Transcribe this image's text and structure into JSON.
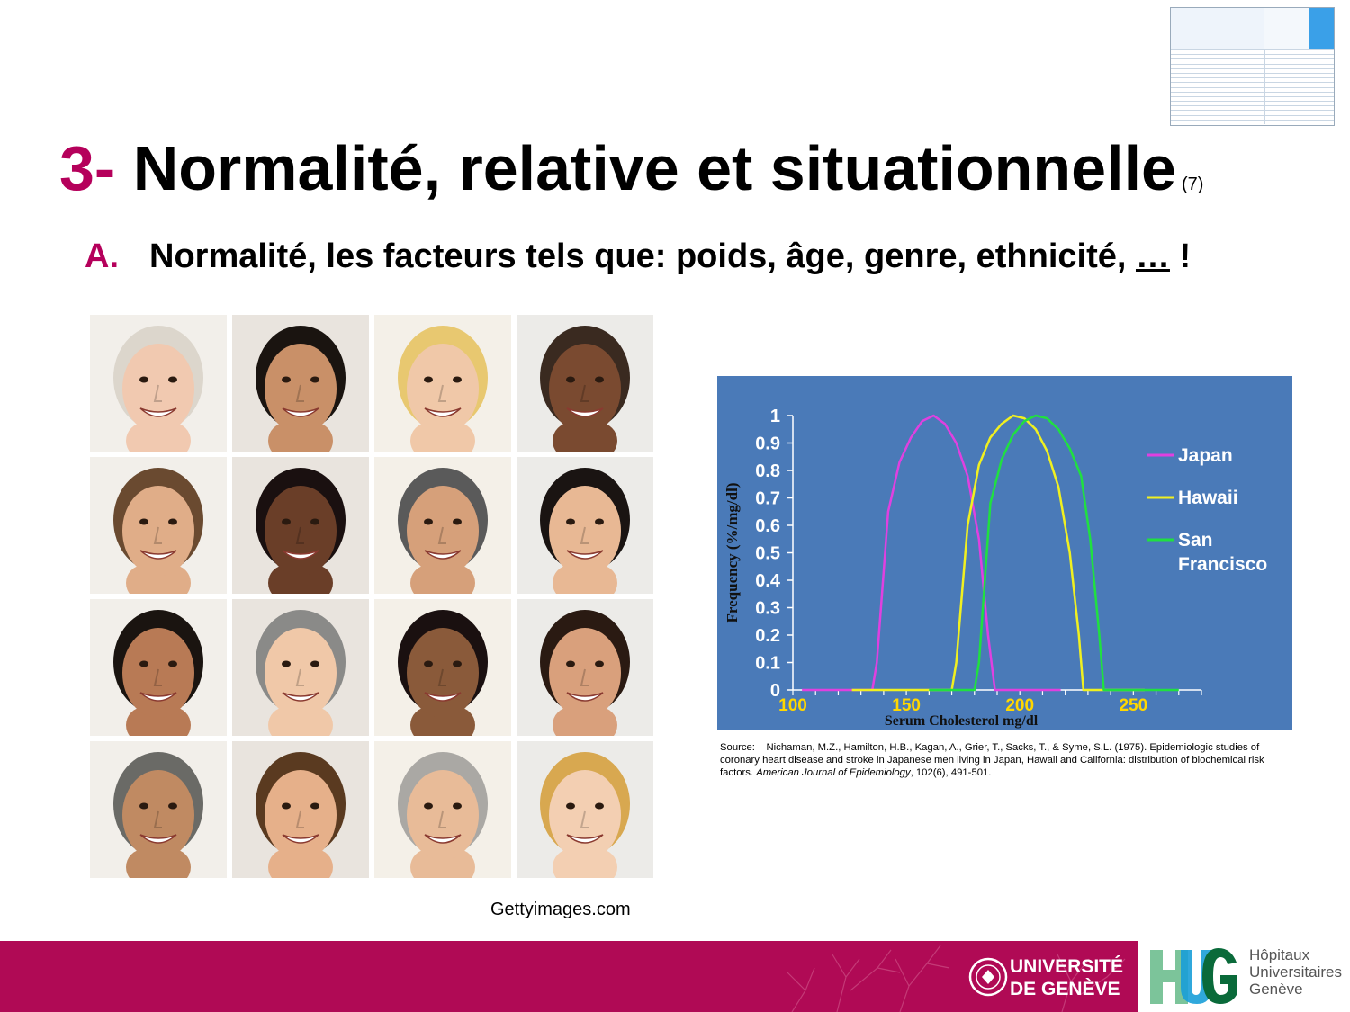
{
  "slide": {
    "title_number": "3-",
    "title_text": "Normalité, relative et situationnelle",
    "title_ref": "(7)",
    "subtitle_letter": "A.",
    "subtitle_text": "Normalité, les facteurs tels que: poids, âge, genre, ethnicité,",
    "subtitle_ellipsis": "…",
    "subtitle_end": "!",
    "photo_credit": "Gettyimages.com"
  },
  "source": {
    "prefix": "Source:",
    "authors": "Nichaman, M.Z., Hamilton, H.B., Kagan, A., Grier, T., Sacks, T., & Syme, S.L. (1975). Epidemiologic studies of coronary heart disease and stroke in Japanese men living in Japan, Hawaii and California: distribution of biochemical risk factors.",
    "journal": "American Journal of Epidemiology",
    "volume": ", 102(6), 491-501."
  },
  "chart_data": {
    "type": "line",
    "xlabel": "Serum Cholesterol mg/dl",
    "ylabel": "Frequency (%/mg/dl)",
    "xlim": [
      100,
      280
    ],
    "ylim": [
      0,
      1
    ],
    "x_ticks": [
      100,
      150,
      200,
      250
    ],
    "y_ticks": [
      "0",
      "0.1",
      "0.2",
      "0.3",
      "0.4",
      "0.5",
      "0.6",
      "0.7",
      "0.8",
      "0.9",
      "1"
    ],
    "background_color": "#4a7ab8",
    "legend_position": "right",
    "series": [
      {
        "name": "Japan",
        "color": "#e040e0",
        "points": [
          [
            104,
            0
          ],
          [
            135,
            0
          ],
          [
            137,
            0.1
          ],
          [
            142,
            0.65
          ],
          [
            147,
            0.83
          ],
          [
            152,
            0.92
          ],
          [
            157,
            0.98
          ],
          [
            162,
            1.0
          ],
          [
            167,
            0.97
          ],
          [
            172,
            0.9
          ],
          [
            177,
            0.78
          ],
          [
            182,
            0.55
          ],
          [
            186,
            0.2
          ],
          [
            189,
            0
          ],
          [
            205,
            0
          ],
          [
            218,
            0
          ]
        ]
      },
      {
        "name": "Hawaii",
        "color": "#f0f020",
        "points": [
          [
            126,
            0
          ],
          [
            150,
            0
          ],
          [
            170,
            0
          ],
          [
            172,
            0.1
          ],
          [
            177,
            0.6
          ],
          [
            182,
            0.82
          ],
          [
            187,
            0.92
          ],
          [
            192,
            0.97
          ],
          [
            197,
            1.0
          ],
          [
            202,
            0.99
          ],
          [
            207,
            0.95
          ],
          [
            212,
            0.87
          ],
          [
            217,
            0.74
          ],
          [
            222,
            0.5
          ],
          [
            226,
            0.2
          ],
          [
            228,
            0
          ],
          [
            245,
            0
          ],
          [
            255,
            0
          ]
        ]
      },
      {
        "name": "San Francisco",
        "color": "#20e040",
        "points": [
          [
            160,
            0
          ],
          [
            180,
            0
          ],
          [
            182,
            0.1
          ],
          [
            187,
            0.68
          ],
          [
            192,
            0.84
          ],
          [
            197,
            0.93
          ],
          [
            202,
            0.98
          ],
          [
            207,
            1.0
          ],
          [
            212,
            0.99
          ],
          [
            217,
            0.95
          ],
          [
            222,
            0.88
          ],
          [
            227,
            0.78
          ],
          [
            231,
            0.55
          ],
          [
            235,
            0.2
          ],
          [
            237,
            0
          ],
          [
            255,
            0
          ],
          [
            270,
            0
          ]
        ]
      }
    ]
  },
  "logos": {
    "unige_line1": "UNIVERSITÉ",
    "unige_line2": "DE GENÈVE",
    "hug_line1": "Hôpitaux",
    "hug_line2": "Universitaires",
    "hug_line3": "Genève"
  },
  "colors": {
    "accent": "#b5005b",
    "footer": "#b00a55"
  }
}
